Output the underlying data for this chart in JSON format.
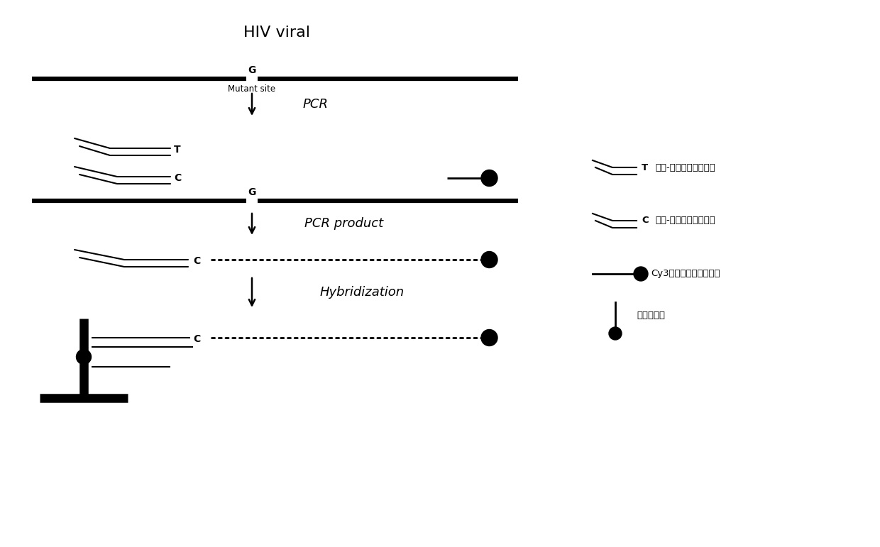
{
  "title": "HIV viral",
  "title_fontsize": 16,
  "background_color": "#ffffff",
  "text_color": "#000000",
  "fig_width": 12.4,
  "fig_height": 7.71,
  "dpi": 100,
  "mutant_site_label": "Mutant site",
  "step_labels": [
    "PCR",
    "PCR product",
    "Hybridization"
  ],
  "base_labels": [
    "G",
    "T",
    "C",
    "G",
    "C",
    "C"
  ],
  "legend_label_T": "T",
  "legend_label_C": "C",
  "legend_text_wild": "探针-引物链（野生型）",
  "legend_text_mutant": "探针-引物链（突变型）",
  "legend_text_cy3": "Cy3荧光修饰的下游引物",
  "legend_text_anti": "探针反义链"
}
